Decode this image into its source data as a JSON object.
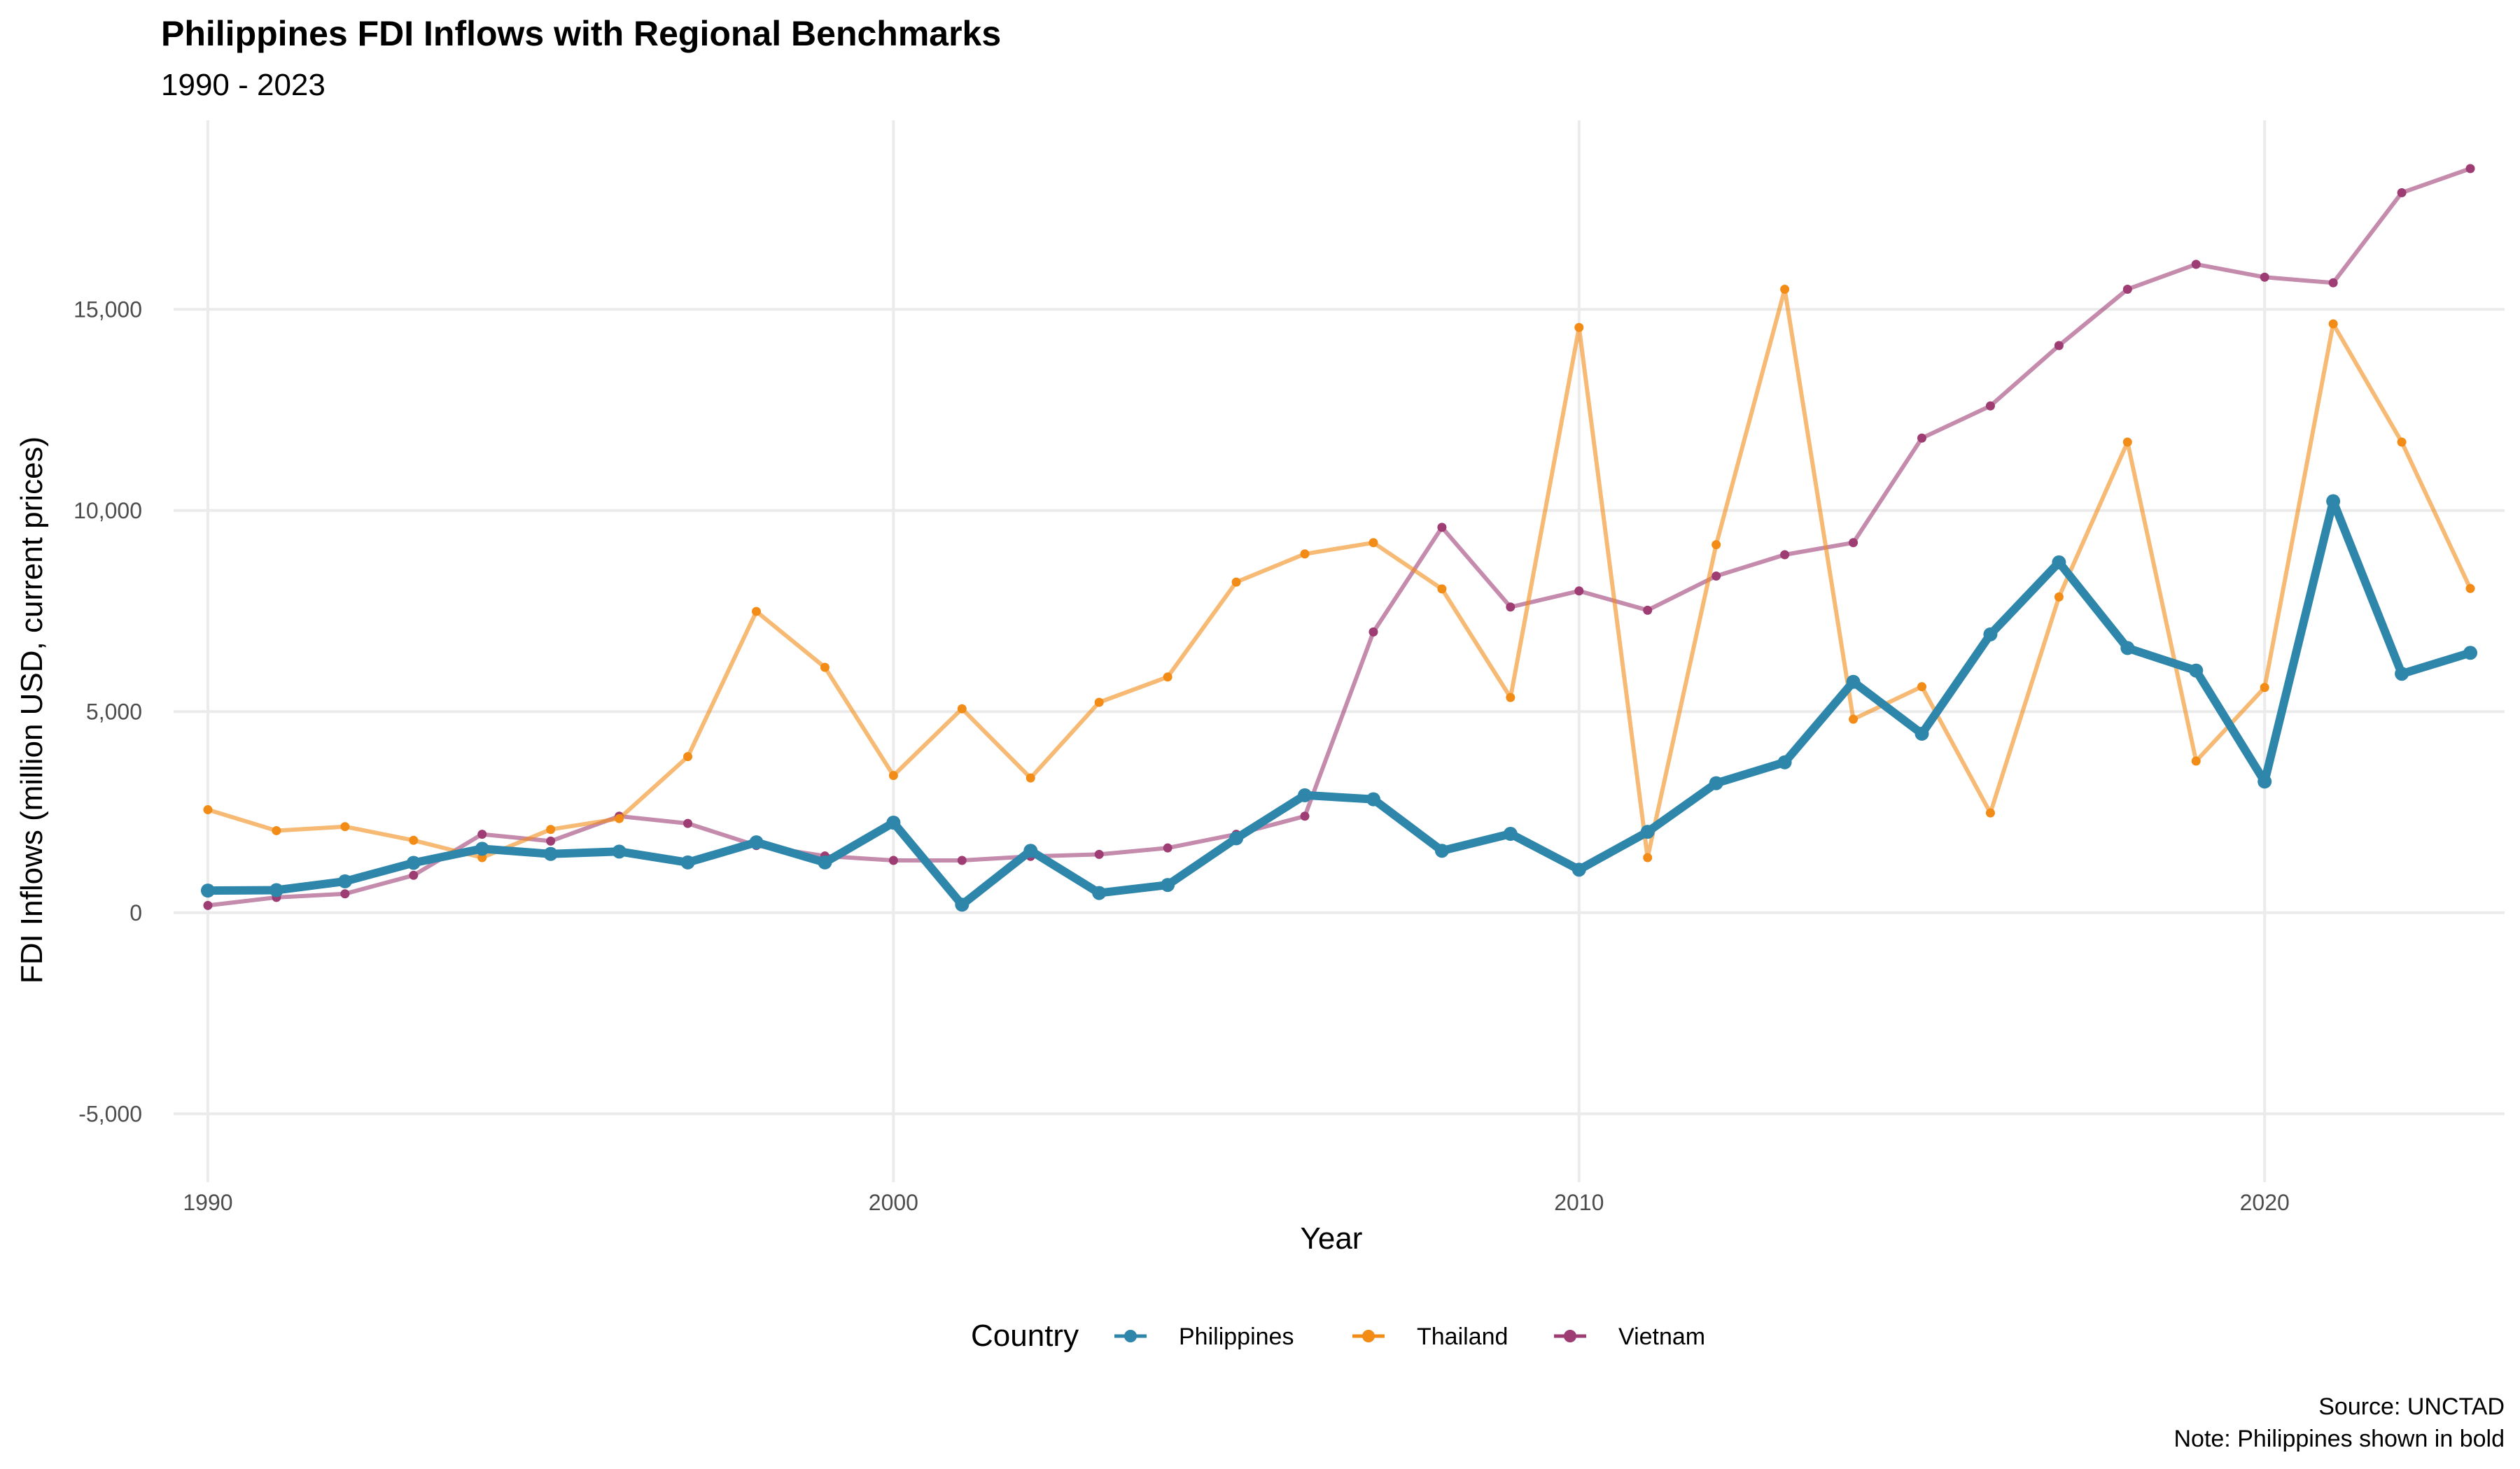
{
  "chart_data": {
    "type": "line",
    "title": "Philippines FDI Inflows with Regional Benchmarks",
    "subtitle": "1990 - 2023",
    "xlabel": "Year",
    "ylabel": "FDI Inflows (million USD, current prices)",
    "xlim": [
      1989.5,
      2023.5
    ],
    "ylim": [
      -6700,
      19700
    ],
    "x_ticks": [
      1990,
      2000,
      2010,
      2020
    ],
    "x_tick_labels": [
      "1990",
      "2000",
      "2010",
      "2020"
    ],
    "y_ticks": [
      -5000,
      0,
      5000,
      10000,
      15000
    ],
    "y_tick_labels": [
      "-5,000",
      "0",
      "5,000",
      "10,000",
      "15,000"
    ],
    "grid": true,
    "legend": {
      "title": "Country",
      "position": "bottom"
    },
    "caption": [
      "Source: UNCTAD",
      "Note: Philippines shown in bold"
    ],
    "x": [
      1990,
      1991,
      1992,
      1993,
      1994,
      1995,
      1996,
      1997,
      1998,
      1999,
      2000,
      2001,
      2002,
      2003,
      2004,
      2005,
      2006,
      2007,
      2008,
      2009,
      2010,
      2011,
      2012,
      2013,
      2014,
      2015,
      2016,
      2017,
      2018,
      2019,
      2020,
      2021,
      2022,
      2023
    ],
    "series": [
      {
        "name": "Vietnam",
        "color": "#9e3d74",
        "values": [
          180,
          380,
          470,
          930,
          1950,
          1780,
          2400,
          2220,
          1670,
          1410,
          1300,
          1300,
          1400,
          1450,
          1610,
          1950,
          2400,
          6980,
          9580,
          7600,
          8000,
          7520,
          8370,
          8900,
          9200,
          11800,
          12600,
          14100,
          15500,
          16120,
          15800,
          15660,
          17900,
          18500
        ]
      },
      {
        "name": "Thailand",
        "color": "#f28c17",
        "values": [
          2560,
          2040,
          2140,
          1800,
          1370,
          2070,
          2340,
          3880,
          7490,
          6100,
          3410,
          5070,
          3350,
          5230,
          5860,
          8220,
          8920,
          9200,
          8050,
          5350,
          14550,
          1370,
          9150,
          15500,
          4810,
          5620,
          2480,
          7850,
          11700,
          3770,
          5600,
          14640,
          11700,
          8060
        ],
        "values_note": ""
      },
      {
        "name": "Philippines",
        "color": "#2e86ab",
        "values": [
          550,
          560,
          780,
          1240,
          1590,
          1460,
          1520,
          1250,
          1750,
          1250,
          2240,
          200,
          1540,
          490,
          690,
          1850,
          2920,
          2820,
          1540,
          1960,
          1070,
          2010,
          3220,
          3740,
          5740,
          4450,
          6920,
          8710,
          6580,
          6020,
          3260,
          10230,
          5940,
          6460
        ]
      }
    ]
  }
}
